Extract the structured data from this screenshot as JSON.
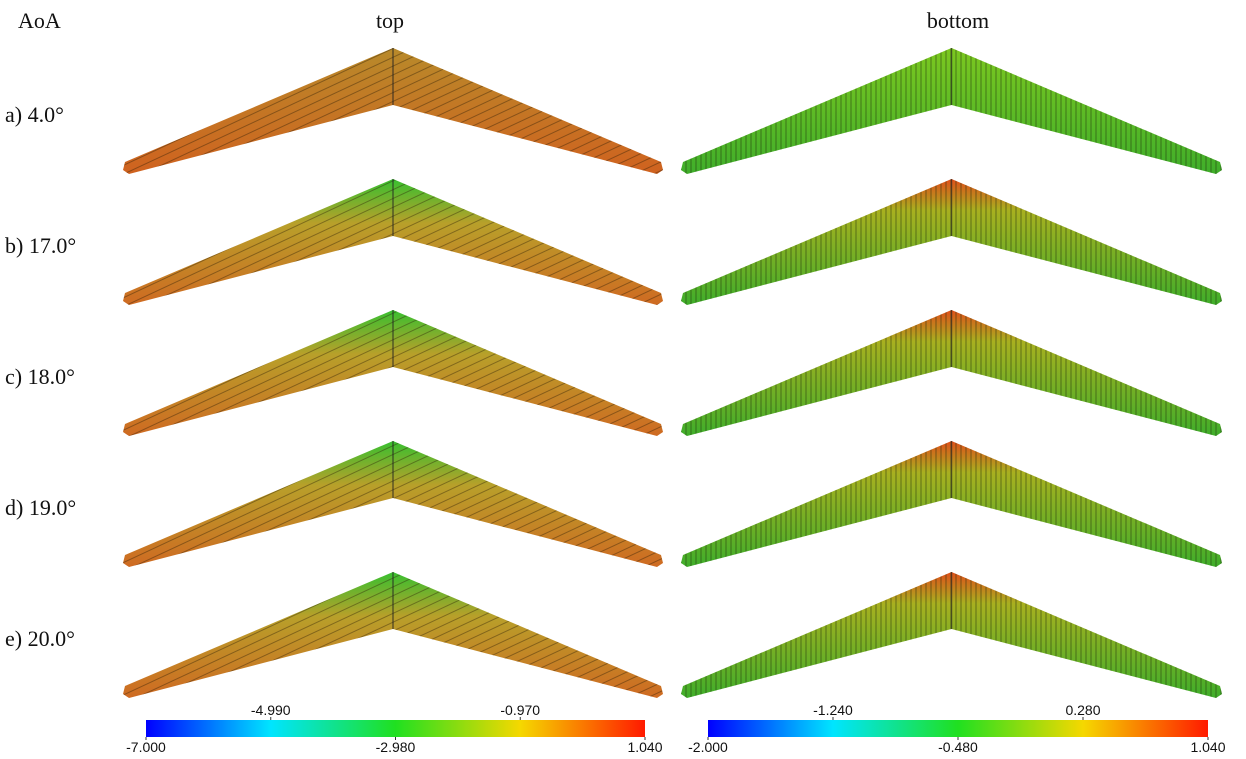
{
  "header": {
    "aoa": "AoA",
    "columns": [
      "top",
      "bottom"
    ]
  },
  "rows": [
    "a) 4.0°",
    "b) 17.0°",
    "c) 18.0°",
    "d) 19.0°",
    "e) 20.0°"
  ],
  "colorbars": [
    {
      "lim": [
        -7.0,
        1.04
      ],
      "ticks": [
        {
          "value": -7.0,
          "label": "-7.000"
        },
        {
          "value": -4.99,
          "label": "-4.990"
        },
        {
          "value": -2.98,
          "label": "-2.980"
        },
        {
          "value": -0.97,
          "label": "-0.970"
        },
        {
          "value": 1.04,
          "label": "1.040"
        }
      ]
    },
    {
      "lim": [
        -2.0,
        1.04
      ],
      "ticks": [
        {
          "value": -2.0,
          "label": "-2.000"
        },
        {
          "value": -1.24,
          "label": "-1.240"
        },
        {
          "value": -0.48,
          "label": "-0.480"
        },
        {
          "value": 0.28,
          "label": "0.280"
        },
        {
          "value": 1.04,
          "label": "1.040"
        }
      ]
    }
  ]
}
